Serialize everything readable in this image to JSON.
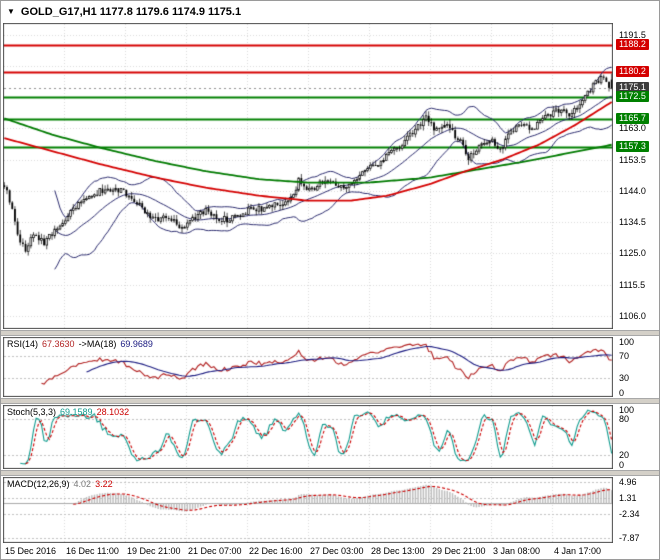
{
  "title": {
    "dropdown_icon": "▼",
    "symbol_info": "GOLD_G17,H1 1177.8 1179.6 1174.9 1175.1"
  },
  "colors": {
    "background": "#ffffff",
    "border": "#4a4a4a",
    "grid": "#d9d9d9",
    "level_dotted": "#c0c0c0",
    "candle_up_fill": "#ffffff",
    "candle_down_fill": "#000000",
    "candle_outline": "#000000",
    "bollinger": "#2b2b6e",
    "ma_red": "#d40000",
    "ma_green": "#007a00",
    "resistance": "#d40000",
    "support": "#008000",
    "current_price_bg": "#3c3c3c",
    "rsi_line": "#b22222",
    "rsi_ma": "#1a1a80",
    "stoch_k": "#0f9b8e",
    "stoch_d": "#cc0000",
    "macd_hist": "#bdbdbd",
    "macd_signal": "#cc0000",
    "zero_line": "#a8a8a8",
    "separator": "#d4d0c8"
  },
  "chart_data": {
    "type": "candlestick-with-indicators",
    "symbol": "GOLD_G17",
    "timeframe": "H1",
    "last": {
      "open": 1177.8,
      "high": 1179.6,
      "low": 1174.9,
      "close": 1175.1
    },
    "time_labels": [
      "15 Dec 2016",
      "16 Dec 11:00",
      "19 Dec 21:00",
      "21 Dec 07:00",
      "22 Dec 16:00",
      "27 Dec 03:00",
      "28 Dec 13:00",
      "29 Dec 21:00",
      "3 Jan 08:00",
      "4 Jan 17:00"
    ],
    "main": {
      "y_range": [
        1102,
        1195
      ],
      "axis_ticks": [
        1191.5,
        1163.0,
        1153.5,
        1144.0,
        1134.5,
        1125.0,
        1115.5,
        1106.0
      ],
      "grid_ticks": [
        1106.0,
        1115.5,
        1125.0,
        1134.5,
        1144.0,
        1153.5,
        1163.0,
        1172.5,
        1182.0,
        1191.5
      ],
      "levels": [
        {
          "value": 1188.2,
          "kind": "resistance"
        },
        {
          "value": 1180.2,
          "kind": "resistance"
        },
        {
          "value": 1175.1,
          "kind": "bid"
        },
        {
          "value": 1172.5,
          "kind": "support"
        },
        {
          "value": 1165.7,
          "kind": "support"
        },
        {
          "value": 1157.3,
          "kind": "support"
        }
      ],
      "candle_count": 230,
      "bollinger": {
        "period": 20,
        "deviation": 2.2
      },
      "close_anchors": [
        [
          0,
          1146
        ],
        [
          0.008,
          1142
        ],
        [
          0.015,
          1136
        ],
        [
          0.025,
          1129
        ],
        [
          0.035,
          1126
        ],
        [
          0.05,
          1131
        ],
        [
          0.065,
          1128
        ],
        [
          0.08,
          1131
        ],
        [
          0.095,
          1134
        ],
        [
          0.11,
          1138
        ],
        [
          0.13,
          1141
        ],
        [
          0.15,
          1143
        ],
        [
          0.17,
          1145
        ],
        [
          0.19,
          1144
        ],
        [
          0.21,
          1142
        ],
        [
          0.23,
          1138
        ],
        [
          0.25,
          1135
        ],
        [
          0.27,
          1136
        ],
        [
          0.29,
          1133
        ],
        [
          0.31,
          1135
        ],
        [
          0.33,
          1138
        ],
        [
          0.35,
          1136
        ],
        [
          0.37,
          1135
        ],
        [
          0.39,
          1137
        ],
        [
          0.41,
          1139
        ],
        [
          0.43,
          1138
        ],
        [
          0.45,
          1140
        ],
        [
          0.47,
          1141
        ],
        [
          0.485,
          1147
        ],
        [
          0.5,
          1144
        ],
        [
          0.52,
          1146
        ],
        [
          0.54,
          1147
        ],
        [
          0.56,
          1144
        ],
        [
          0.58,
          1147
        ],
        [
          0.6,
          1151
        ],
        [
          0.62,
          1153
        ],
        [
          0.64,
          1156
        ],
        [
          0.66,
          1159
        ],
        [
          0.68,
          1163
        ],
        [
          0.695,
          1166
        ],
        [
          0.71,
          1162
        ],
        [
          0.73,
          1164
        ],
        [
          0.75,
          1159
        ],
        [
          0.765,
          1154
        ],
        [
          0.78,
          1157
        ],
        [
          0.8,
          1160
        ],
        [
          0.815,
          1156
        ],
        [
          0.83,
          1161
        ],
        [
          0.85,
          1164
        ],
        [
          0.87,
          1163
        ],
        [
          0.89,
          1166
        ],
        [
          0.91,
          1169
        ],
        [
          0.93,
          1167
        ],
        [
          0.95,
          1171
        ],
        [
          0.97,
          1176
        ],
        [
          0.985,
          1179
        ],
        [
          1,
          1175.1
        ]
      ],
      "ma_red_anchors": [
        [
          0,
          1160
        ],
        [
          0.08,
          1156
        ],
        [
          0.16,
          1152
        ],
        [
          0.25,
          1148
        ],
        [
          0.33,
          1145
        ],
        [
          0.42,
          1142.5
        ],
        [
          0.5,
          1141
        ],
        [
          0.57,
          1141
        ],
        [
          0.63,
          1142.5
        ],
        [
          0.7,
          1146
        ],
        [
          0.76,
          1150
        ],
        [
          0.82,
          1153.5
        ],
        [
          0.88,
          1158
        ],
        [
          0.94,
          1164
        ],
        [
          1,
          1171
        ]
      ],
      "ma_green_anchors": [
        [
          0,
          1166
        ],
        [
          0.08,
          1161
        ],
        [
          0.16,
          1157
        ],
        [
          0.25,
          1153
        ],
        [
          0.33,
          1150
        ],
        [
          0.42,
          1147.5
        ],
        [
          0.5,
          1146.5
        ],
        [
          0.6,
          1146.5
        ],
        [
          0.7,
          1148
        ],
        [
          0.78,
          1150.5
        ],
        [
          0.86,
          1153
        ],
        [
          0.93,
          1155.5
        ],
        [
          1,
          1158
        ]
      ]
    },
    "rsi": {
      "label_name": "RSI(14)",
      "label_value": "67.3630",
      "label_ma_name": "->MA(18)",
      "label_ma_value": "69.9689",
      "period": 14,
      "ma_period": 18,
      "ticks": [
        100,
        70,
        30,
        0
      ],
      "levels": [
        70,
        30
      ],
      "y_range": [
        -4,
        104
      ]
    },
    "stoch": {
      "label_name": "Stoch(5,3,3)",
      "label_k_value": "69.1589",
      "label_d_value": "28.1032",
      "k_period": 5,
      "d_period": 3,
      "slowing": 3,
      "ticks": [
        100,
        80,
        20,
        0
      ],
      "levels": [
        80,
        20
      ],
      "y_range": [
        -4,
        104
      ]
    },
    "macd": {
      "label_name": "MACD(12,26,9)",
      "label_macd_value": "4.02",
      "label_signal_value": "3.22",
      "fast": 12,
      "slow": 26,
      "signal": 9,
      "ticks": [
        4.96,
        1.31,
        -2.34,
        -7.87
      ],
      "y_range": [
        -9,
        6
      ]
    }
  }
}
